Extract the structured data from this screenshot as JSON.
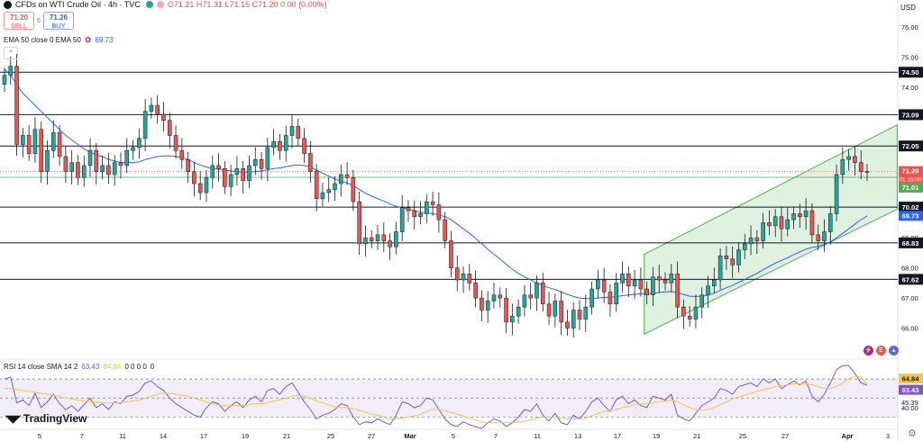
{
  "header": {
    "title": "CFDs on WTI Crude Oil · 4h · TVC",
    "open": "O71.21",
    "high": "H71.31",
    "low": "L71.15",
    "close": "C71.20",
    "change": "0.00 (0.00%)"
  },
  "trade": {
    "sell_price": "71.20",
    "sell_label": "SELL",
    "spread": "6",
    "buy_price": "71.26",
    "buy_label": "BUY"
  },
  "indicators": {
    "ema_label": "EMA 50 close 0 EMA 50",
    "ema_value": "69.73",
    "rsi_label": "RSI 14 close SMA 14 2",
    "rsi_value": "63.43",
    "rsi_sma_value": "64.84",
    "rsi_tail": "0 0 0 0",
    "rsi_tail2": "0"
  },
  "branding": {
    "logo": "TradingView",
    "currency": "USD"
  },
  "colors": {
    "up": "#26a69a",
    "down": "#ef5350",
    "ema": "#2962ff",
    "rsi": "#7e57c2",
    "rsi_sma": "#f5c542",
    "channel": "#4caf50"
  },
  "chart_data": {
    "type": "candlestick",
    "ylim": [
      65.0,
      76.6
    ],
    "price_ticks": [
      "76.00",
      "75.00",
      "74.00",
      "73.00",
      "72.00",
      "71.00",
      "70.00",
      "69.00",
      "68.00",
      "67.00",
      "66.00"
    ],
    "x_ticks": [
      "5",
      "7",
      "11",
      "14",
      "17",
      "19",
      "21",
      "25",
      "27",
      "Mar",
      "5",
      "7",
      "11",
      "13",
      "17",
      "19",
      "21",
      "25",
      "27",
      "Apr",
      "3"
    ],
    "levels": [
      {
        "price": 74.5,
        "label": "74.50"
      },
      {
        "price": 73.09,
        "label": "73.09"
      },
      {
        "price": 72.05,
        "label": "72.05"
      },
      {
        "price": 70.02,
        "label": "70.02"
      },
      {
        "price": 68.83,
        "label": "68.83"
      },
      {
        "price": 67.62,
        "label": "67.62"
      }
    ],
    "price_badges": [
      {
        "price": 71.2,
        "label": "71.20",
        "sub": "01:15:00",
        "color": "#ef5350"
      },
      {
        "price": 71.01,
        "label": "71.01",
        "color": "#4caf50"
      },
      {
        "price": 69.73,
        "label": "69.73",
        "color": "#2962ff"
      }
    ],
    "channel": {
      "lower": [
        [
          0.698,
          65.8
        ],
        [
          0.972,
          69.95
        ]
      ],
      "upper": [
        [
          0.698,
          68.45
        ],
        [
          0.972,
          72.75
        ]
      ]
    },
    "close_series": [
      74.4,
      74.7,
      72.1,
      72.4,
      71.8,
      72.6,
      71.2,
      71.9,
      72.5,
      71.7,
      71.2,
      71.5,
      71.0,
      71.4,
      71.9,
      71.2,
      71.4,
      71.1,
      71.5,
      71.4,
      71.9,
      72.0,
      72.3,
      73.2,
      73.4,
      73.1,
      72.9,
      72.4,
      71.9,
      71.6,
      71.2,
      70.8,
      70.5,
      71.0,
      71.4,
      71.3,
      70.7,
      71.1,
      71.3,
      70.9,
      71.4,
      71.6,
      71.3,
      72.0,
      72.2,
      71.9,
      72.4,
      72.7,
      72.3,
      71.8,
      71.2,
      70.3,
      70.5,
      70.6,
      70.8,
      71.1,
      71.0,
      70.2,
      68.8,
      69.0,
      68.9,
      69.1,
      68.9,
      68.7,
      69.2,
      70.0,
      69.9,
      69.7,
      69.8,
      70.2,
      70.1,
      69.6,
      68.9,
      68.0,
      67.6,
      67.8,
      67.5,
      67.0,
      66.6,
      66.9,
      67.1,
      67.0,
      66.2,
      66.4,
      66.7,
      67.1,
      67.0,
      67.5,
      66.8,
      66.4,
      66.9,
      66.2,
      66.0,
      66.6,
      66.3,
      66.7,
      67.3,
      67.6,
      67.2,
      66.8,
      67.5,
      67.8,
      67.4,
      67.6,
      67.3,
      67.1,
      67.7,
      67.6,
      67.5,
      67.8,
      66.7,
      66.4,
      66.3,
      66.7,
      67.1,
      67.4,
      67.6,
      68.4,
      68.3,
      68.1,
      68.6,
      68.8,
      69.0,
      68.9,
      69.5,
      69.4,
      69.7,
      69.3,
      69.6,
      69.8,
      69.7,
      69.9,
      69.1,
      68.9,
      69.2,
      69.8,
      71.1,
      71.6,
      71.7,
      71.5,
      71.2,
      71.2
    ],
    "ema_series": [
      74.6,
      74.4,
      74.1,
      73.8,
      73.6,
      73.4,
      73.2,
      73.0,
      72.8,
      72.6,
      72.4,
      72.25,
      72.1,
      71.95,
      71.85,
      71.75,
      71.7,
      71.6,
      71.55,
      71.5,
      71.5,
      71.5,
      71.52,
      71.6,
      71.65,
      71.7,
      71.72,
      71.72,
      71.7,
      71.66,
      71.6,
      71.5,
      71.42,
      71.35,
      71.3,
      71.28,
      71.25,
      71.22,
      71.2,
      71.18,
      71.18,
      71.2,
      71.22,
      71.26,
      71.3,
      71.32,
      71.36,
      71.4,
      71.42,
      71.4,
      71.35,
      71.25,
      71.15,
      71.05,
      70.95,
      70.88,
      70.82,
      70.74,
      70.6,
      70.48,
      70.38,
      70.3,
      70.22,
      70.12,
      70.05,
      70.0,
      69.95,
      69.9,
      69.85,
      69.82,
      69.8,
      69.76,
      69.7,
      69.6,
      69.45,
      69.3,
      69.15,
      68.98,
      68.8,
      68.62,
      68.45,
      68.3,
      68.12,
      67.96,
      67.82,
      67.7,
      67.6,
      67.5,
      67.42,
      67.34,
      67.28,
      67.2,
      67.12,
      67.05,
      67.0,
      66.98,
      66.98,
      67.0,
      67.02,
      67.02,
      67.04,
      67.08,
      67.1,
      67.12,
      67.14,
      67.14,
      67.16,
      67.18,
      67.2,
      67.22,
      67.18,
      67.12,
      67.06,
      67.05,
      67.06,
      67.1,
      67.16,
      67.25,
      67.34,
      67.42,
      67.52,
      67.62,
      67.72,
      67.82,
      67.94,
      68.05,
      68.16,
      68.25,
      68.34,
      68.44,
      68.53,
      68.62,
      68.68,
      68.72,
      68.78,
      68.86,
      69.0,
      69.15,
      69.3,
      69.45,
      69.6,
      69.73
    ],
    "rsi_ylim": [
      20,
      90
    ],
    "rsi_ticks": [
      "45.39",
      "40.00"
    ],
    "rsi_badges": [
      {
        "value": 64.84,
        "label": "64.84",
        "color": "#f5c542"
      },
      {
        "value": 63.43,
        "label": "63.43",
        "color": "#7e57c2"
      }
    ],
    "rsi_bands": [
      70,
      50,
      30
    ],
    "rsi_series": [
      70,
      72,
      45,
      48,
      42,
      55,
      40,
      46,
      54,
      44,
      38,
      42,
      36,
      43,
      50,
      40,
      44,
      38,
      46,
      44,
      52,
      53,
      57,
      66,
      68,
      62,
      58,
      50,
      44,
      40,
      36,
      32,
      30,
      40,
      46,
      44,
      36,
      42,
      46,
      40,
      48,
      52,
      46,
      58,
      60,
      54,
      62,
      66,
      56,
      46,
      38,
      28,
      32,
      34,
      38,
      44,
      42,
      30,
      22,
      25,
      24,
      28,
      25,
      22,
      32,
      46,
      44,
      40,
      42,
      50,
      48,
      38,
      28,
      22,
      20,
      25,
      22,
      20,
      18,
      24,
      28,
      26,
      20,
      24,
      30,
      38,
      36,
      44,
      32,
      26,
      34,
      24,
      22,
      32,
      28,
      36,
      46,
      50,
      42,
      36,
      48,
      52,
      44,
      48,
      42,
      40,
      52,
      50,
      48,
      54,
      32,
      28,
      26,
      34,
      42,
      46,
      50,
      60,
      58,
      54,
      62,
      64,
      66,
      62,
      70,
      66,
      70,
      60,
      64,
      68,
      64,
      68,
      52,
      46,
      54,
      66,
      80,
      84,
      84,
      76,
      66,
      63.43
    ],
    "rsi_sma_series": [
      60,
      60,
      59,
      58,
      57,
      56,
      55,
      54,
      53,
      52,
      50,
      49,
      48,
      47,
      46,
      46,
      45,
      45,
      45,
      45,
      46,
      47,
      48,
      50,
      52,
      54,
      55,
      55,
      54,
      53,
      52,
      50,
      48,
      46,
      44,
      43,
      42,
      42,
      42,
      42,
      43,
      44,
      44,
      45,
      47,
      48,
      50,
      52,
      53,
      52,
      50,
      47,
      45,
      43,
      41,
      40,
      40,
      39,
      37,
      35,
      33,
      32,
      30,
      28,
      28,
      29,
      30,
      31,
      33,
      36,
      38,
      38,
      37,
      35,
      33,
      31,
      29,
      27,
      25,
      24,
      24,
      24,
      24,
      24,
      25,
      26,
      27,
      29,
      30,
      30,
      30,
      29,
      28,
      28,
      28,
      29,
      31,
      34,
      36,
      37,
      38,
      40,
      41,
      43,
      44,
      44,
      45,
      46,
      47,
      48,
      46,
      43,
      40,
      38,
      37,
      38,
      40,
      43,
      46,
      49,
      51,
      53,
      55,
      57,
      59,
      60,
      62,
      63,
      64,
      65,
      65,
      65,
      64,
      62,
      60,
      60,
      62,
      66,
      70,
      73,
      72,
      64.84
    ]
  }
}
